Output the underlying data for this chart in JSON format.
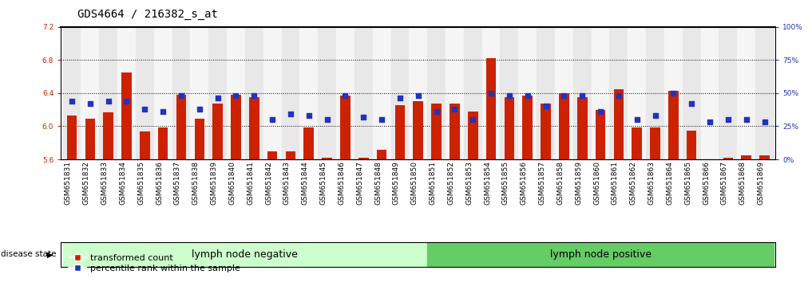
{
  "title": "GDS4664 / 216382_s_at",
  "samples": [
    "GSM651831",
    "GSM651832",
    "GSM651833",
    "GSM651834",
    "GSM651835",
    "GSM651836",
    "GSM651837",
    "GSM651838",
    "GSM651839",
    "GSM651840",
    "GSM651841",
    "GSM651842",
    "GSM651843",
    "GSM651844",
    "GSM651845",
    "GSM651846",
    "GSM651847",
    "GSM651848",
    "GSM651849",
    "GSM651850",
    "GSM651851",
    "GSM651852",
    "GSM651853",
    "GSM651854",
    "GSM651855",
    "GSM651856",
    "GSM651857",
    "GSM651858",
    "GSM651859",
    "GSM651860",
    "GSM651861",
    "GSM651862",
    "GSM651863",
    "GSM651864",
    "GSM651865",
    "GSM651866",
    "GSM651867",
    "GSM651868",
    "GSM651869"
  ],
  "bar_values": [
    6.13,
    6.09,
    6.17,
    6.65,
    5.94,
    5.98,
    6.38,
    6.09,
    6.27,
    6.38,
    6.35,
    5.7,
    5.7,
    5.98,
    5.62,
    6.37,
    5.62,
    5.72,
    6.25,
    6.3,
    6.27,
    6.27,
    6.18,
    6.82,
    6.35,
    6.37,
    6.27,
    6.4,
    6.35,
    6.2,
    6.45,
    5.98,
    5.98,
    6.43,
    5.95,
    5.6,
    5.62,
    5.65,
    5.65
  ],
  "percentile_values": [
    44,
    42,
    44,
    44,
    38,
    36,
    48,
    38,
    46,
    48,
    48,
    30,
    34,
    33,
    30,
    48,
    32,
    30,
    46,
    48,
    36,
    38,
    30,
    50,
    48,
    48,
    40,
    48,
    48,
    36,
    48,
    30,
    33,
    50,
    42,
    28,
    30,
    30,
    28
  ],
  "ylim_left": [
    5.6,
    7.2
  ],
  "ylim_right": [
    0,
    100
  ],
  "yticks_left": [
    5.6,
    6.0,
    6.4,
    6.8,
    7.2
  ],
  "yticks_right": [
    0,
    25,
    50,
    75,
    100
  ],
  "ytick_labels_right": [
    "0%",
    "25%",
    "50%",
    "75%",
    "100%"
  ],
  "bar_color": "#cc2200",
  "dot_color": "#2233bb",
  "bar_bottom": 5.6,
  "group1_label": "lymph node negative",
  "group2_label": "lymph node positive",
  "group1_count": 20,
  "group1_color": "#ccffcc",
  "group2_color": "#66cc66",
  "disease_state_label": "disease state",
  "legend1": "transformed count",
  "legend2": "percentile rank within the sample",
  "title_fontsize": 10,
  "tick_fontsize": 6.5,
  "group_label_fontsize": 9,
  "legend_fontsize": 8
}
